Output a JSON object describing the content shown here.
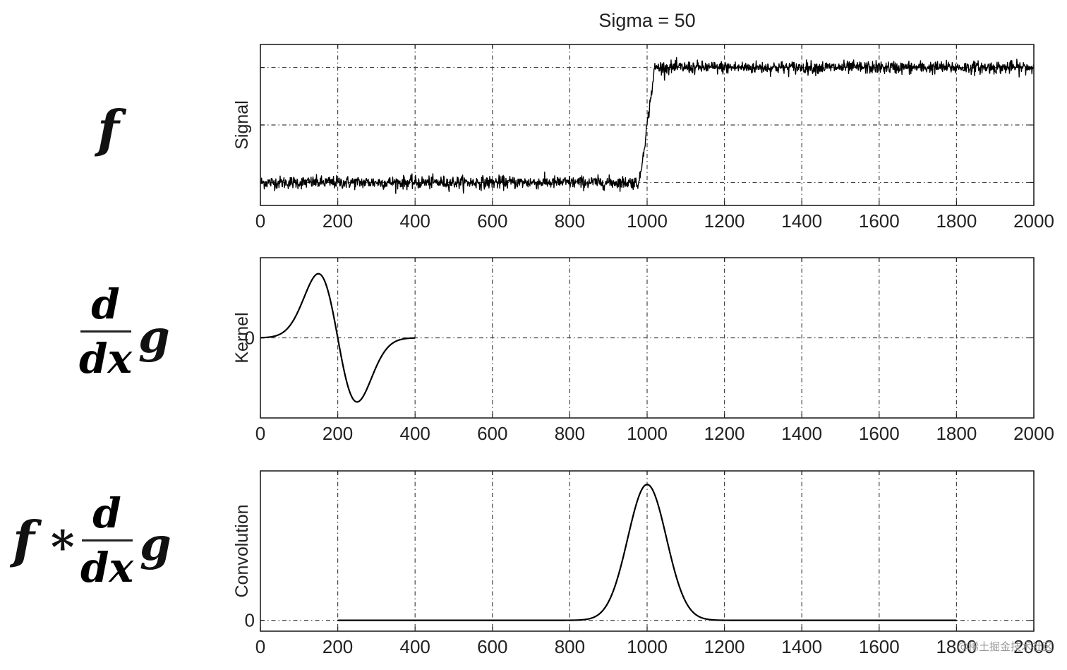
{
  "title": "Sigma = 50",
  "equations": {
    "row1_f": "f",
    "row2_num": "d",
    "row2_den": "dx",
    "row2_g": "g",
    "row3_f": "f",
    "row3_star": "*",
    "row3_num": "d",
    "row3_den": "dx",
    "row3_g": "g"
  },
  "watermark": "@稀土掘金技术社区",
  "chart_data": [
    {
      "type": "line",
      "title": "Sigma = 50",
      "ylabel": "Signal",
      "xlim": [
        0,
        2000
      ],
      "ylim": [
        -0.4,
        2.4
      ],
      "x_ticks": [
        "0",
        "200",
        "400",
        "600",
        "800",
        "1000",
        "1200",
        "1400",
        "1600",
        "1800",
        "2000"
      ],
      "y_grid": [
        0,
        1,
        2
      ],
      "y_tick_labels": [],
      "grid": true,
      "noise": 0.055,
      "series": [
        {
          "x": [
            0,
            980,
            1020,
            2000
          ],
          "y": [
            0,
            0,
            2,
            2
          ]
        }
      ]
    },
    {
      "type": "line",
      "ylabel": "Kernel",
      "xlim": [
        0,
        2000
      ],
      "ylim": [
        -1.25,
        1.25
      ],
      "x_ticks": [
        "0",
        "200",
        "400",
        "600",
        "800",
        "1000",
        "1200",
        "1400",
        "1600",
        "1800",
        "2000"
      ],
      "y_grid": [
        0
      ],
      "y_tick_labels": [
        "0"
      ],
      "grid": true,
      "kernel": {
        "center": 200,
        "sigma": 50,
        "x_end": 400,
        "peak": 1.0
      }
    },
    {
      "type": "line",
      "ylabel": "Convolution",
      "xlim": [
        0,
        2000
      ],
      "ylim": [
        -0.08,
        1.1
      ],
      "x_ticks": [
        "0",
        "200",
        "400",
        "600",
        "800",
        "1000",
        "1200",
        "1400",
        "1600",
        "1800",
        "2000"
      ],
      "y_grid": [
        0
      ],
      "y_tick_labels": [
        "0"
      ],
      "grid": true,
      "peak": {
        "center": 1000,
        "sigma": 50,
        "height": 1.0,
        "x_start": 200,
        "x_end": 1800
      }
    }
  ]
}
